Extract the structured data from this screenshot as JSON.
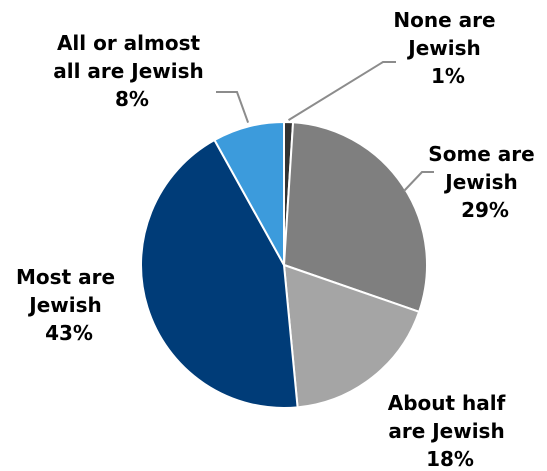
{
  "chart_data": {
    "type": "pie",
    "title": "",
    "start_angle_deg": 0,
    "direction": "clockwise",
    "slices": [
      {
        "label_lines": [
          "None are",
          "Jewish"
        ],
        "value": 1,
        "value_text": "1%",
        "color": "#323232"
      },
      {
        "label_lines": [
          "Some are",
          "Jewish"
        ],
        "value": 29,
        "value_text": "29%",
        "color": "#7f7f7f"
      },
      {
        "label_lines": [
          "About half",
          "are Jewish"
        ],
        "value": 18,
        "value_text": "18%",
        "color": "#a5a5a5"
      },
      {
        "label_lines": [
          "Most are",
          "Jewish"
        ],
        "value": 43,
        "value_text": "43%",
        "color": "#003c78"
      },
      {
        "label_lines": [
          "All or almost",
          "all are Jewish"
        ],
        "value": 8,
        "value_text": "8%",
        "color": "#3c9bdc"
      }
    ]
  }
}
